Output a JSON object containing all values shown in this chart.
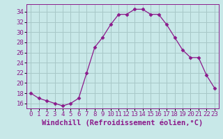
{
  "x": [
    0,
    1,
    2,
    3,
    4,
    5,
    6,
    7,
    8,
    9,
    10,
    11,
    12,
    13,
    14,
    15,
    16,
    17,
    18,
    19,
    20,
    21,
    22,
    23
  ],
  "y": [
    18,
    17,
    16.5,
    16,
    15.5,
    16,
    17,
    22,
    27,
    29,
    31.5,
    33.5,
    33.5,
    34.5,
    34.5,
    33.5,
    33.5,
    31.5,
    29,
    26.5,
    25,
    25,
    21.5,
    19
  ],
  "line_color": "#8b1a8b",
  "marker": "D",
  "marker_size": 2.5,
  "bg_color": "#c8e8e8",
  "grid_color": "#a8c8c8",
  "xlabel": "Windchill (Refroidissement éolien,°C)",
  "xlabel_color": "#8b1a8b",
  "xlim": [
    -0.5,
    23.5
  ],
  "ylim": [
    15.0,
    35.5
  ],
  "yticks": [
    16,
    18,
    20,
    22,
    24,
    26,
    28,
    30,
    32,
    34
  ],
  "xticks": [
    0,
    1,
    2,
    3,
    4,
    5,
    6,
    7,
    8,
    9,
    10,
    11,
    12,
    13,
    14,
    15,
    16,
    17,
    18,
    19,
    20,
    21,
    22,
    23
  ],
  "tick_label_size": 6.5,
  "xlabel_size": 7.5
}
